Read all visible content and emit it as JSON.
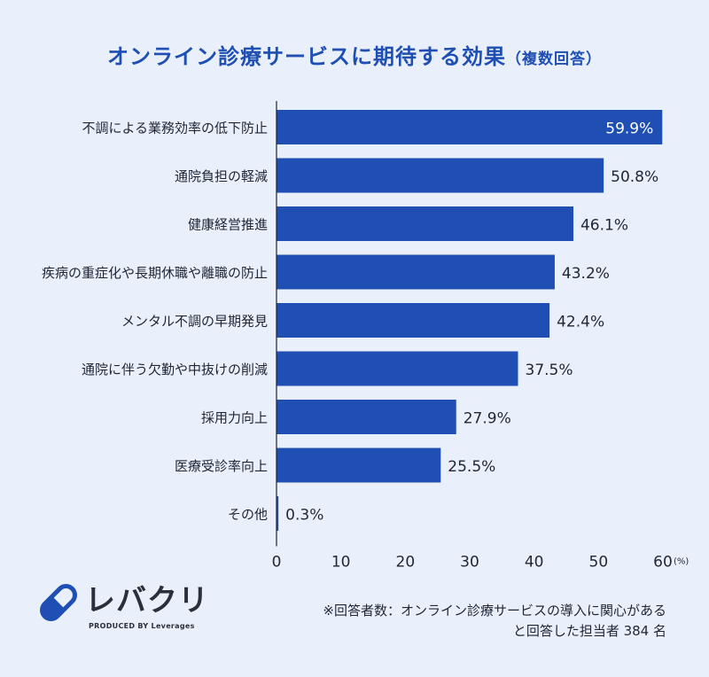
{
  "title": {
    "main": "オンライン診療サービスに期待する効果",
    "sub": "（複数回答）"
  },
  "chart_data": {
    "type": "bar",
    "orientation": "horizontal",
    "categories": [
      "不調による業務効率の低下防止",
      "通院負担の軽減",
      "健康経営推進",
      "疾病の重症化や長期休職や離職の防止",
      "メンタル不調の早期発見",
      "通院に伴う欠勤や中抜けの削減",
      "採用力向上",
      "医療受診率向上",
      "その他"
    ],
    "values": [
      59.9,
      50.8,
      46.1,
      43.2,
      42.4,
      37.5,
      27.9,
      25.5,
      0.3
    ],
    "value_labels": [
      "59.9%",
      "50.8%",
      "46.1%",
      "43.2%",
      "42.4%",
      "37.5%",
      "27.9%",
      "25.5%",
      "0.3%"
    ],
    "xlim": [
      0,
      60
    ],
    "xticks": [
      0,
      10,
      20,
      30,
      40,
      50,
      60
    ],
    "tick_labels": [
      "0",
      "10",
      "20",
      "30",
      "40",
      "50",
      "60"
    ],
    "unit_label": "(%)",
    "bar_color": "#1f4fb3",
    "grid": false,
    "legend": "none"
  },
  "footnote": {
    "line1": "※回答者数：オンライン診療サービスの導入に関心がある",
    "line2": "と回答した担当者 384 名"
  },
  "logo": {
    "name": "レバクリ",
    "byline": "PRODUCED BY Leverages"
  },
  "colors": {
    "background": "#eaf0fb",
    "bar": "#1f4fb3",
    "title": "#1f4fb3"
  }
}
